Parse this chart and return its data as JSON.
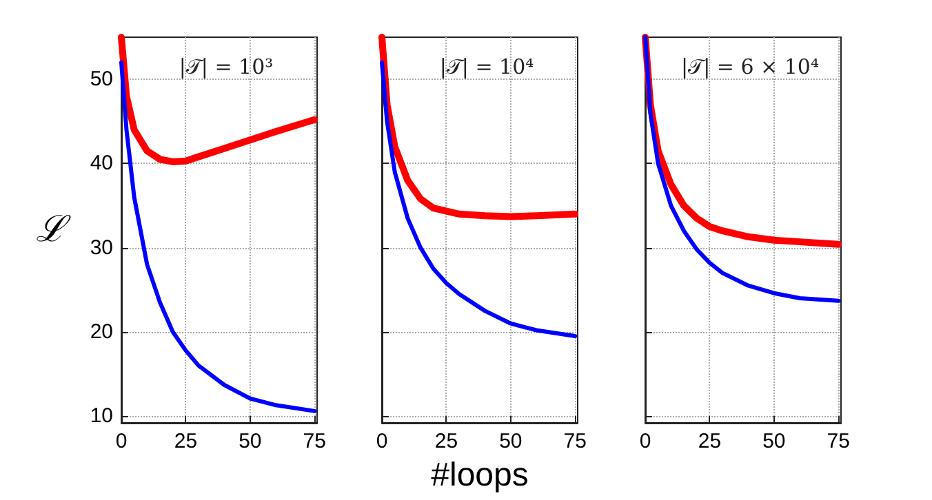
{
  "chart_data": [
    {
      "type": "line",
      "title": "|𝒯| = 10³",
      "ylabel": "ℒ",
      "xlim": [
        0,
        76
      ],
      "xticks": [
        0,
        25,
        50,
        75
      ],
      "ylim": [
        9.2,
        55
      ],
      "yticks": [
        10,
        20,
        30,
        40,
        50
      ],
      "grid": true,
      "marker": "none",
      "line_style": "solid",
      "series": [
        {
          "color": "#ff0000",
          "x": [
            0,
            2,
            5,
            10,
            15,
            20,
            25,
            30,
            40,
            50,
            60,
            75
          ],
          "values": [
            55,
            48,
            44,
            41.5,
            40.5,
            40.2,
            40.3,
            40.8,
            41.8,
            42.8,
            43.8,
            45.2
          ]
        },
        {
          "color": "#0000ff",
          "x": [
            0,
            2,
            5,
            10,
            15,
            20,
            25,
            30,
            40,
            50,
            60,
            75
          ],
          "values": [
            52,
            44,
            36,
            28,
            23.5,
            20,
            17.8,
            16,
            13.7,
            12.1,
            11.3,
            10.6
          ]
        }
      ]
    },
    {
      "type": "line",
      "title": "|𝒯| = 10⁴",
      "xlabel": "#loops",
      "xlim": [
        0,
        76
      ],
      "xticks": [
        0,
        25,
        50,
        75
      ],
      "ylim": [
        9.2,
        55
      ],
      "yticks": [
        10,
        20,
        30,
        40,
        50
      ],
      "grid": true,
      "marker": "none",
      "line_style": "solid",
      "tick_labels": "x",
      "series": [
        {
          "color": "#ff0000",
          "x": [
            0,
            2,
            5,
            10,
            15,
            20,
            30,
            40,
            50,
            60,
            75
          ],
          "values": [
            55,
            47,
            42,
            38,
            35.8,
            34.7,
            34,
            33.8,
            33.7,
            33.8,
            34
          ]
        },
        {
          "color": "#0000ff",
          "x": [
            0,
            2,
            5,
            10,
            15,
            20,
            25,
            30,
            40,
            50,
            60,
            75
          ],
          "values": [
            52,
            45,
            39,
            33.5,
            30,
            27.5,
            25.8,
            24.5,
            22.5,
            21,
            20.2,
            19.5
          ]
        }
      ]
    },
    {
      "type": "line",
      "title": "|𝒯| = 6 × 10⁴",
      "xlim": [
        0,
        76
      ],
      "xticks": [
        0,
        25,
        50,
        75
      ],
      "ylim": [
        9.2,
        55
      ],
      "yticks": [
        10,
        20,
        30,
        40,
        50
      ],
      "grid": true,
      "marker": "none",
      "line_style": "solid",
      "tick_labels": "x",
      "series": [
        {
          "color": "#ff0000",
          "x": [
            0,
            2,
            5,
            10,
            15,
            20,
            25,
            30,
            40,
            50,
            60,
            75
          ],
          "values": [
            55,
            47,
            41.5,
            37.5,
            35,
            33.5,
            32.5,
            32,
            31.3,
            30.9,
            30.7,
            30.4
          ]
        },
        {
          "color": "#0000ff",
          "x": [
            0,
            2,
            5,
            10,
            15,
            20,
            25,
            30,
            40,
            50,
            60,
            75
          ],
          "values": [
            55,
            46,
            40,
            35,
            32,
            29.8,
            28.2,
            27,
            25.5,
            24.6,
            24,
            23.7
          ]
        }
      ]
    }
  ]
}
